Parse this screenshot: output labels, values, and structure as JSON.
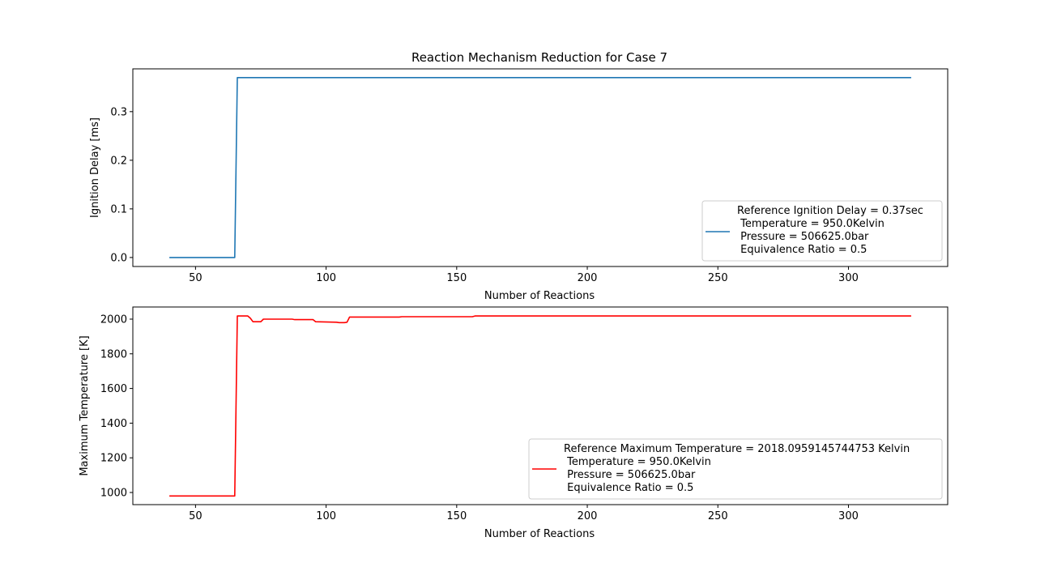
{
  "chart_data": [
    {
      "type": "line",
      "title": "Reaction Mechanism Reduction for Case 7",
      "xlabel": "Number of Reactions",
      "ylabel": "Ignition Delay [ms]",
      "xlim": [
        26,
        338
      ],
      "ylim": [
        -0.0185,
        0.388
      ],
      "xticks": [
        50,
        100,
        150,
        200,
        250,
        300
      ],
      "xtick_labels": [
        "50",
        "100",
        "150",
        "200",
        "250",
        "300"
      ],
      "yticks": [
        0.0,
        0.1,
        0.2,
        0.3
      ],
      "ytick_labels": [
        "0.0",
        "0.1",
        "0.2",
        "0.3"
      ],
      "grid": false,
      "legend_position": "lower-right",
      "series": [
        {
          "name": "Reference Ignition Delay = 0.37sec\n Temperature = 950.0Kelvin\n Pressure = 506625.0bar\n Equivalence Ratio = 0.5",
          "color": "#1f77b4",
          "x": [
            40,
            65,
            66,
            100,
            150,
            200,
            250,
            300,
            324
          ],
          "y": [
            0.0,
            0.0,
            0.37,
            0.37,
            0.37,
            0.37,
            0.37,
            0.37,
            0.37
          ]
        }
      ]
    },
    {
      "type": "line",
      "title": "",
      "xlabel": "Number of Reactions",
      "ylabel": "Maximum Temperature [K]",
      "xlim": [
        26,
        338
      ],
      "ylim": [
        930,
        2070
      ],
      "xticks": [
        50,
        100,
        150,
        200,
        250,
        300
      ],
      "xtick_labels": [
        "50",
        "100",
        "150",
        "200",
        "250",
        "300"
      ],
      "yticks": [
        1000,
        1200,
        1400,
        1600,
        1800,
        2000
      ],
      "ytick_labels": [
        "1000",
        "1200",
        "1400",
        "1600",
        "1800",
        "2000"
      ],
      "grid": false,
      "legend_position": "lower-right",
      "series": [
        {
          "name": "Reference Maximum Temperature = 2018.0959145744753 Kelvin\n Temperature = 950.0Kelvin\n Pressure = 506625.0bar\n Equivalence Ratio = 0.5",
          "color": "#ff0000",
          "x": [
            40,
            65,
            66,
            70,
            71,
            72,
            75,
            76,
            87,
            88,
            94,
            95,
            96,
            104,
            105,
            107,
            108,
            109,
            128,
            129,
            156,
            157,
            200,
            250,
            300,
            324
          ],
          "y": [
            980,
            980,
            2018,
            2018,
            2005,
            1985,
            1985,
            2000,
            2000,
            1997,
            1997,
            1997,
            1985,
            1982,
            1980,
            1980,
            1982,
            2012,
            2012,
            2014,
            2014,
            2018,
            2018,
            2018,
            2018,
            2018
          ]
        }
      ]
    }
  ]
}
